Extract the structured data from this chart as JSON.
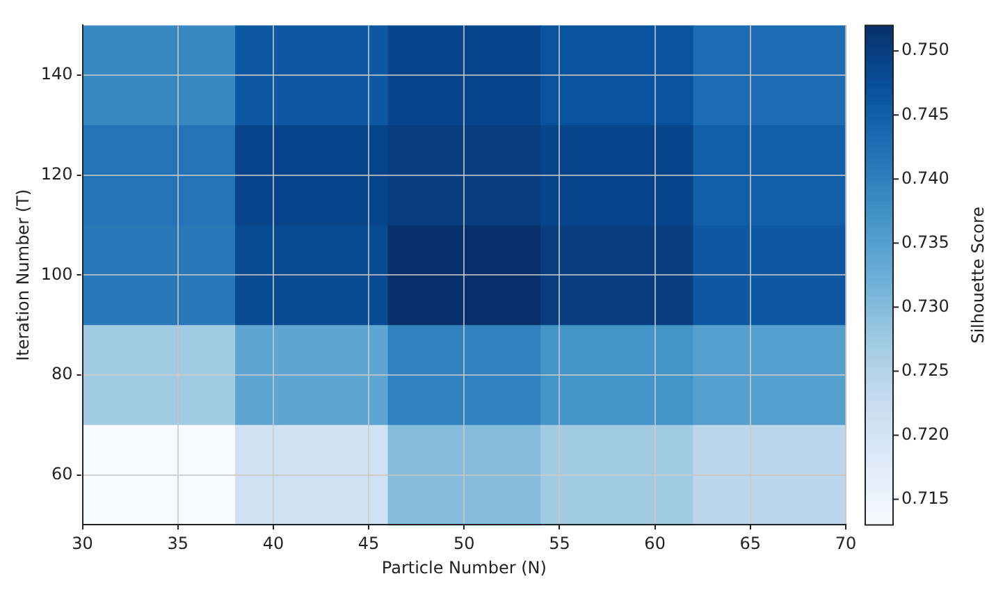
{
  "chart_data": {
    "type": "heatmap",
    "xlabel": "Particle Number (N)",
    "ylabel": "Iteration Number (T)",
    "clabel": "Silhouette Score",
    "xlim": [
      30,
      70
    ],
    "xticks": [
      30,
      35,
      40,
      45,
      50,
      55,
      60,
      65,
      70
    ],
    "ylim": [
      50,
      150
    ],
    "yticks": [
      60,
      80,
      100,
      120,
      140
    ],
    "cells": [
      [
        0.739,
        0.746,
        0.749,
        0.747,
        0.743
      ],
      [
        0.742,
        0.749,
        0.75,
        0.749,
        0.745
      ],
      [
        0.741,
        0.748,
        0.752,
        0.75,
        0.746
      ],
      [
        0.727,
        0.734,
        0.74,
        0.737,
        0.735
      ],
      [
        0.713,
        0.721,
        0.73,
        0.727,
        0.724
      ]
    ],
    "clim": [
      0.713,
      0.752
    ],
    "cticks": [
      0.715,
      {
        "value": 0.72,
        "label": "0.720"
      },
      0.725,
      {
        "value": 0.73,
        "label": "0.730"
      },
      0.735,
      {
        "value": 0.74,
        "label": "0.740"
      },
      0.745,
      {
        "value": 0.75,
        "label": "0.750"
      }
    ],
    "grid": true
  }
}
